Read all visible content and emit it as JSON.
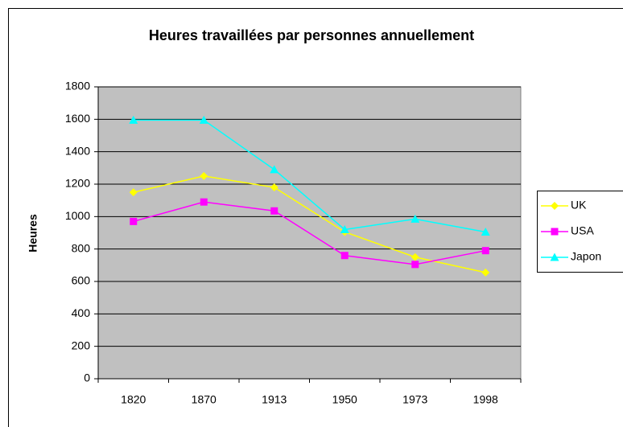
{
  "chart_data": {
    "type": "line",
    "title": "Heures travaillées par personnes annuellement",
    "y_label": "Heures",
    "categories": [
      "1820",
      "1870",
      "1913",
      "1950",
      "1973",
      "1998"
    ],
    "series": [
      {
        "name": "UK",
        "color": "#ffff00",
        "marker": "diamond",
        "values": [
          1150,
          1250,
          1180,
          905,
          750,
          655
        ]
      },
      {
        "name": "USA",
        "color": "#ff00ff",
        "marker": "square",
        "values": [
          970,
          1090,
          1035,
          760,
          705,
          790
        ]
      },
      {
        "name": "Japon",
        "color": "#00ffff",
        "marker": "triangle",
        "values": [
          1595,
          1595,
          1290,
          920,
          985,
          905
        ]
      }
    ],
    "ylim": [
      0,
      1800
    ],
    "yticks": [
      0,
      200,
      400,
      600,
      800,
      1000,
      1200,
      1400,
      1600,
      1800
    ],
    "grid": true,
    "legend": "right"
  }
}
